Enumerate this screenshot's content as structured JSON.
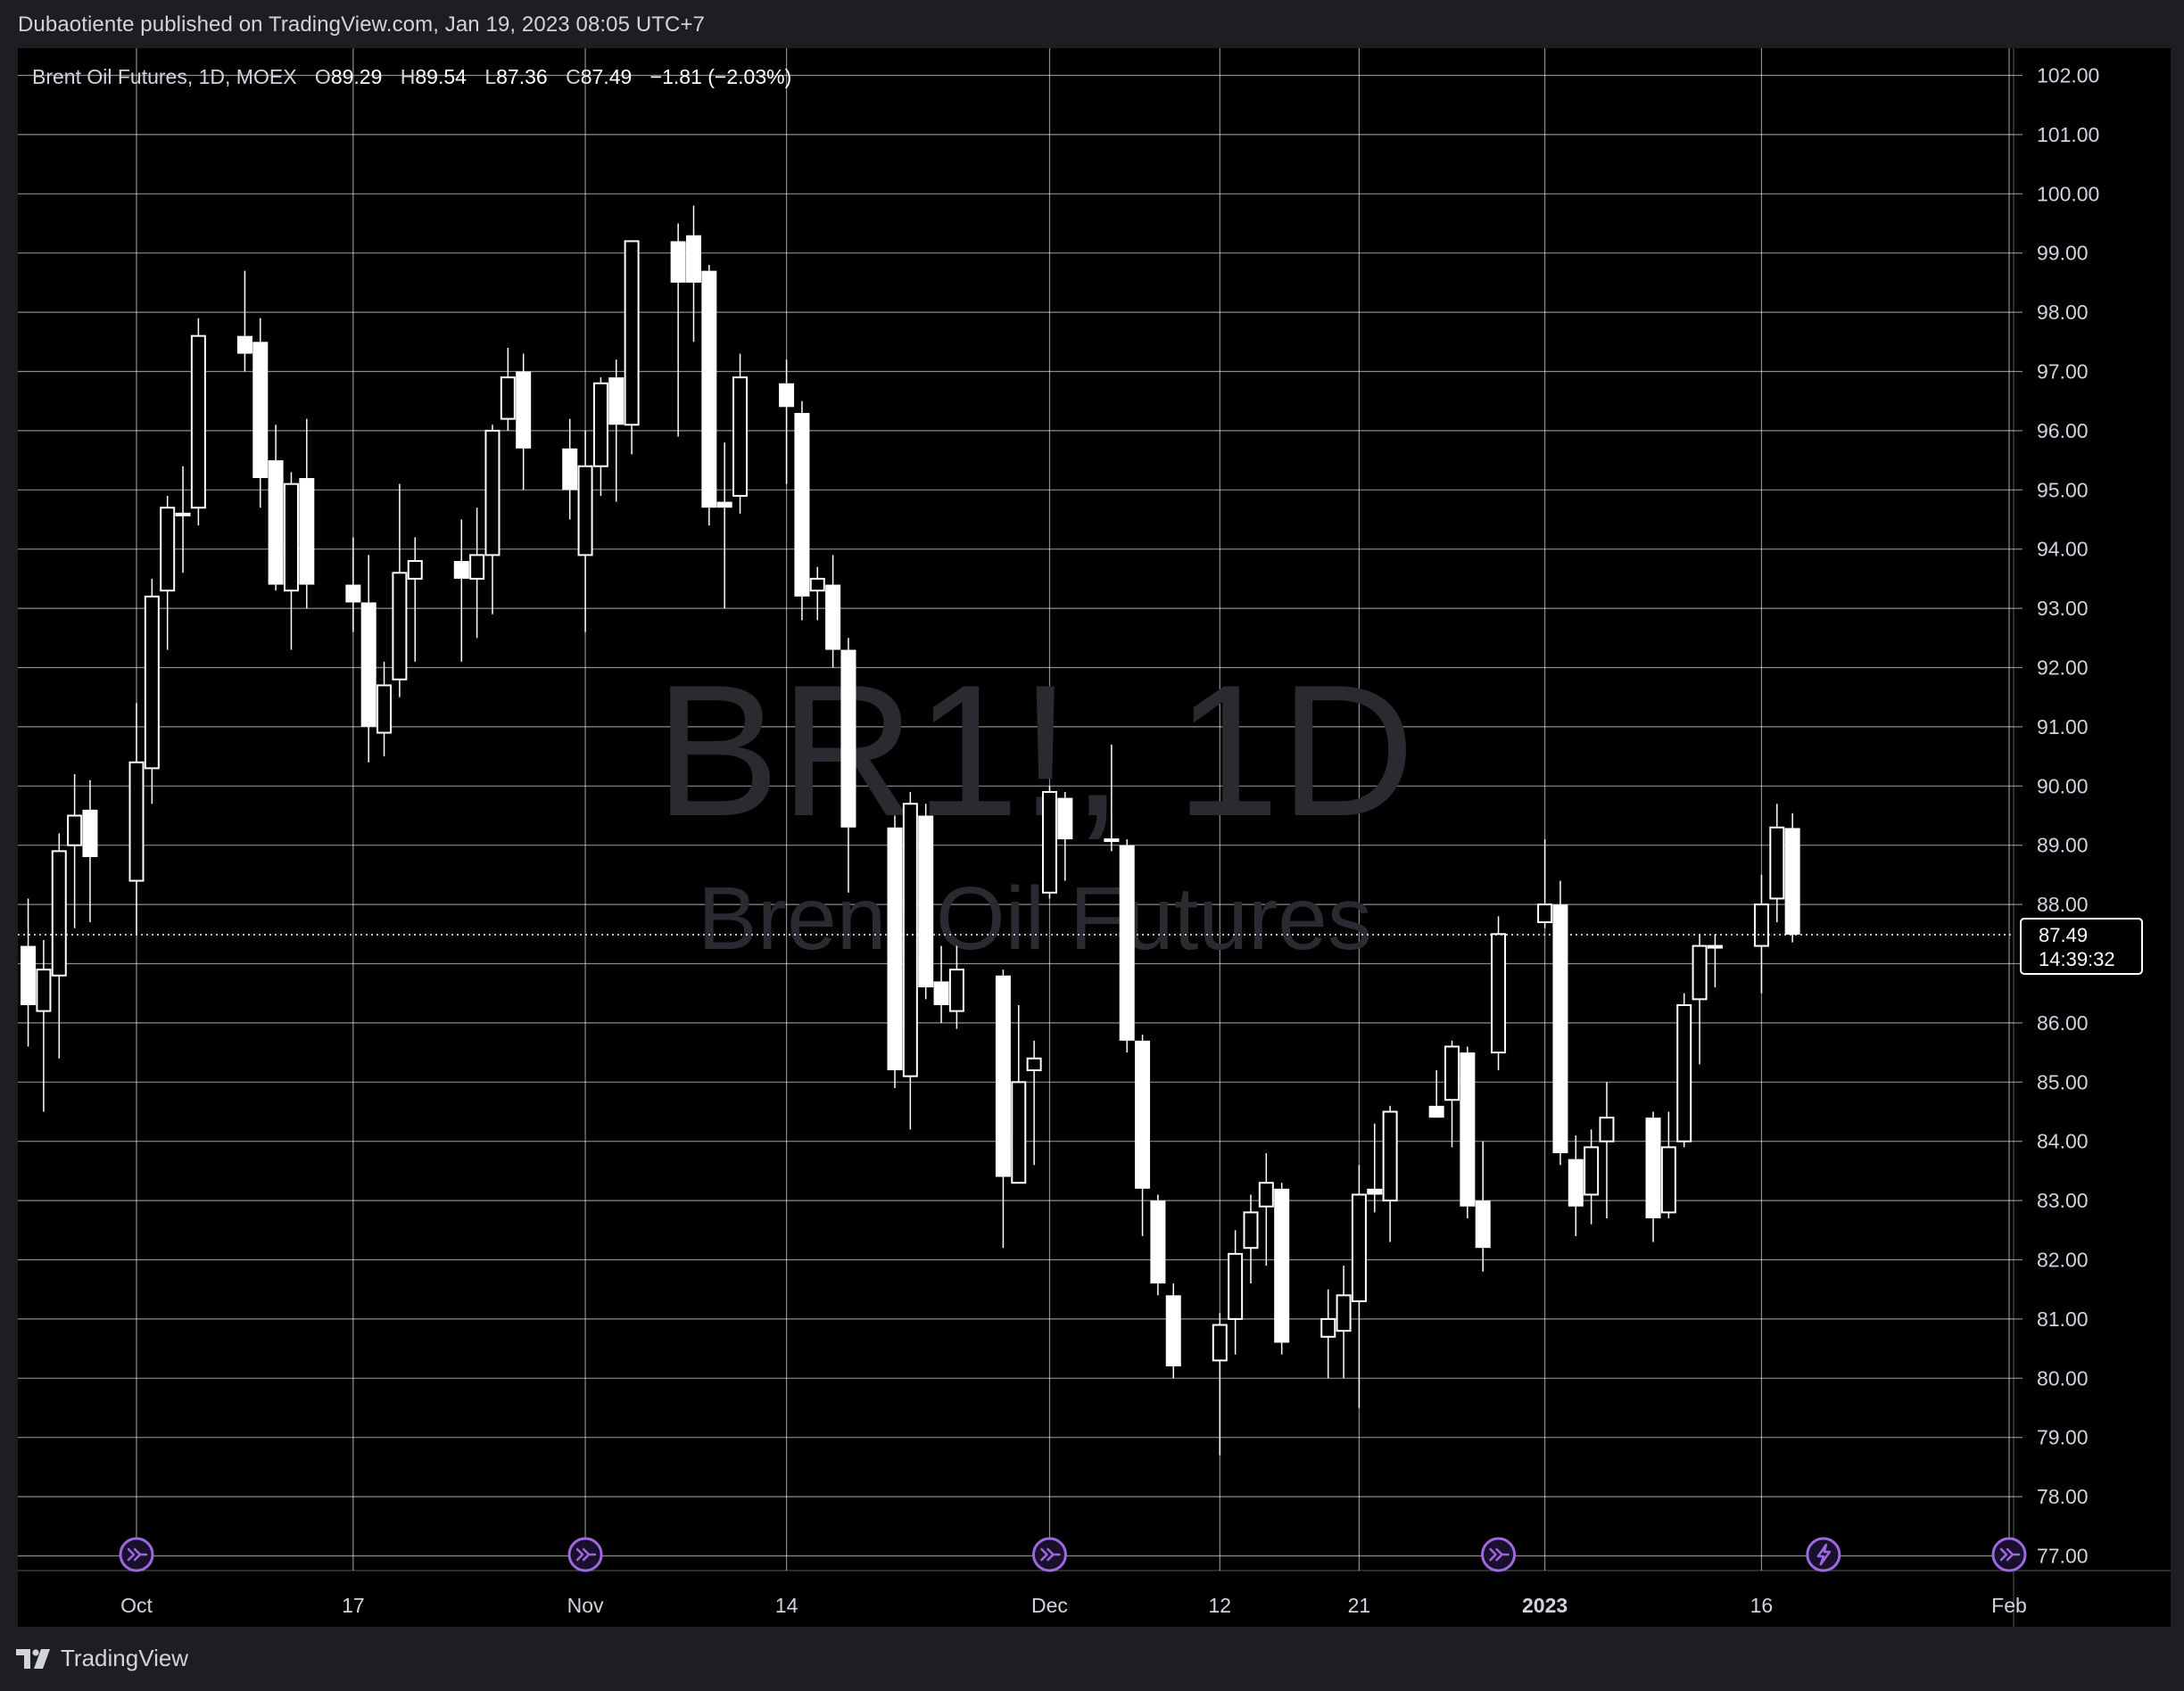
{
  "header": {
    "published_line": "Dubaotiente published on TradingView.com, Jan 19, 2023 08:05 UTC+7"
  },
  "legend": {
    "symbol": "Brent Oil Futures, 1D, MOEX",
    "o_label": "O",
    "o_value": "89.29",
    "h_label": "H",
    "h_value": "89.54",
    "l_label": "L",
    "l_value": "87.36",
    "c_label": "C",
    "c_value": "87.49",
    "change": "−1.81 (−2.03%)"
  },
  "watermark": {
    "line1": "BR1!, 1D",
    "line2": "Brent Oil Futures"
  },
  "price_tag": {
    "price": "87.49",
    "countdown": "14:39:32"
  },
  "footer": {
    "brand": "TradingView"
  },
  "colors": {
    "background": "#000000",
    "page": "#1e1e22",
    "grid": "#ffffff",
    "candle": "#ffffff",
    "event_icon": "#9c6ade",
    "text": "#d1d4dc",
    "watermark": "#2a2a31"
  },
  "icons": [
    "tradingview-logo-icon",
    "dividend-arrow-icon",
    "lightning-icon"
  ],
  "chart_data": {
    "type": "candlestick",
    "ylim": [
      76.5,
      102.5
    ],
    "y_ticks": [
      "77.00",
      "78.00",
      "79.00",
      "80.00",
      "81.00",
      "82.00",
      "83.00",
      "84.00",
      "85.00",
      "86.00",
      "87.00",
      "88.00",
      "89.00",
      "90.00",
      "91.00",
      "92.00",
      "93.00",
      "94.00",
      "95.00",
      "96.00",
      "97.00",
      "98.00",
      "99.00",
      "100.00",
      "101.00",
      "102.00"
    ],
    "x_labels": [
      {
        "text": "Oct",
        "date": "2022-10-03",
        "bold": false
      },
      {
        "text": "17",
        "date": "2022-10-17",
        "bold": false
      },
      {
        "text": "Nov",
        "date": "2022-11-01",
        "bold": false
      },
      {
        "text": "14",
        "date": "2022-11-14",
        "bold": false
      },
      {
        "text": "Dec",
        "date": "2022-12-01",
        "bold": false
      },
      {
        "text": "12",
        "date": "2022-12-12",
        "bold": false
      },
      {
        "text": "21",
        "date": "2022-12-21",
        "bold": false
      },
      {
        "text": "2023",
        "date": "2023-01-02",
        "bold": true
      },
      {
        "text": "16",
        "date": "2023-01-16",
        "bold": false
      },
      {
        "text": "Feb",
        "date": "2023-02-01",
        "bold": false
      }
    ],
    "events": [
      {
        "date": "2022-10-03",
        "type": "dividend-arrow"
      },
      {
        "date": "2022-11-01",
        "type": "dividend-arrow"
      },
      {
        "date": "2022-12-01",
        "type": "dividend-arrow"
      },
      {
        "date": "2022-12-30",
        "type": "dividend-arrow"
      },
      {
        "date": "2023-01-20",
        "type": "lightning"
      },
      {
        "date": "2023-02-01",
        "type": "dividend-arrow"
      }
    ],
    "last_price": 87.49,
    "ohlc": [
      {
        "date": "2022-09-26",
        "o": 87.3,
        "h": 88.1,
        "l": 85.6,
        "c": 86.3
      },
      {
        "date": "2022-09-27",
        "o": 86.2,
        "h": 87.4,
        "l": 84.5,
        "c": 86.9
      },
      {
        "date": "2022-09-28",
        "o": 86.8,
        "h": 89.2,
        "l": 85.4,
        "c": 88.9
      },
      {
        "date": "2022-09-29",
        "o": 89.0,
        "h": 90.2,
        "l": 87.6,
        "c": 89.5
      },
      {
        "date": "2022-09-30",
        "o": 89.6,
        "h": 90.1,
        "l": 87.7,
        "c": 88.8
      },
      {
        "date": "2022-10-03",
        "o": 88.4,
        "h": 91.4,
        "l": 87.5,
        "c": 90.4
      },
      {
        "date": "2022-10-04",
        "o": 90.3,
        "h": 93.5,
        "l": 89.7,
        "c": 93.2
      },
      {
        "date": "2022-10-05",
        "o": 93.3,
        "h": 94.9,
        "l": 92.3,
        "c": 94.7
      },
      {
        "date": "2022-10-06",
        "o": 94.6,
        "h": 95.4,
        "l": 93.6,
        "c": 94.6
      },
      {
        "date": "2022-10-07",
        "o": 94.7,
        "h": 97.9,
        "l": 94.4,
        "c": 97.6
      },
      {
        "date": "2022-10-10",
        "o": 97.6,
        "h": 98.7,
        "l": 97.0,
        "c": 97.3
      },
      {
        "date": "2022-10-11",
        "o": 97.5,
        "h": 97.9,
        "l": 94.7,
        "c": 95.2
      },
      {
        "date": "2022-10-12",
        "o": 95.5,
        "h": 96.1,
        "l": 93.3,
        "c": 93.4
      },
      {
        "date": "2022-10-13",
        "o": 93.3,
        "h": 95.3,
        "l": 92.3,
        "c": 95.1
      },
      {
        "date": "2022-10-14",
        "o": 95.2,
        "h": 96.2,
        "l": 93.0,
        "c": 93.4
      },
      {
        "date": "2022-10-17",
        "o": 93.4,
        "h": 94.2,
        "l": 92.6,
        "c": 93.1
      },
      {
        "date": "2022-10-18",
        "o": 93.1,
        "h": 93.9,
        "l": 90.4,
        "c": 91.0
      },
      {
        "date": "2022-10-19",
        "o": 90.9,
        "h": 92.1,
        "l": 90.5,
        "c": 91.7
      },
      {
        "date": "2022-10-20",
        "o": 91.8,
        "h": 95.1,
        "l": 91.5,
        "c": 93.6
      },
      {
        "date": "2022-10-21",
        "o": 93.5,
        "h": 94.2,
        "l": 92.1,
        "c": 93.8
      },
      {
        "date": "2022-10-24",
        "o": 93.8,
        "h": 94.5,
        "l": 92.1,
        "c": 93.5
      },
      {
        "date": "2022-10-25",
        "o": 93.5,
        "h": 94.7,
        "l": 92.5,
        "c": 93.9
      },
      {
        "date": "2022-10-26",
        "o": 93.9,
        "h": 96.1,
        "l": 92.9,
        "c": 96.0
      },
      {
        "date": "2022-10-27",
        "o": 96.2,
        "h": 97.4,
        "l": 96.0,
        "c": 96.9
      },
      {
        "date": "2022-10-28",
        "o": 97.0,
        "h": 97.3,
        "l": 95.0,
        "c": 95.7
      },
      {
        "date": "2022-10-31",
        "o": 95.7,
        "h": 96.2,
        "l": 94.5,
        "c": 95.0
      },
      {
        "date": "2022-11-01",
        "o": 93.9,
        "h": 96.0,
        "l": 92.6,
        "c": 95.4
      },
      {
        "date": "2022-11-02",
        "o": 95.4,
        "h": 96.9,
        "l": 94.9,
        "c": 96.8
      },
      {
        "date": "2022-11-03",
        "o": 96.9,
        "h": 97.2,
        "l": 94.8,
        "c": 96.1
      },
      {
        "date": "2022-11-04",
        "o": 96.1,
        "h": 99.1,
        "l": 95.6,
        "c": 99.2
      },
      {
        "date": "2022-11-07",
        "o": 99.2,
        "h": 99.5,
        "l": 95.9,
        "c": 98.5
      },
      {
        "date": "2022-11-08",
        "o": 99.3,
        "h": 99.8,
        "l": 97.5,
        "c": 98.5
      },
      {
        "date": "2022-11-09",
        "o": 98.7,
        "h": 98.8,
        "l": 94.4,
        "c": 94.7
      },
      {
        "date": "2022-11-10",
        "o": 94.8,
        "h": 95.8,
        "l": 93.0,
        "c": 94.7
      },
      {
        "date": "2022-11-11",
        "o": 94.9,
        "h": 97.3,
        "l": 94.6,
        "c": 96.9
      },
      {
        "date": "2022-11-14",
        "o": 96.8,
        "h": 97.2,
        "l": 95.1,
        "c": 96.4
      },
      {
        "date": "2022-11-15",
        "o": 96.3,
        "h": 96.5,
        "l": 92.8,
        "c": 93.2
      },
      {
        "date": "2022-11-16",
        "o": 93.3,
        "h": 93.7,
        "l": 92.8,
        "c": 93.5
      },
      {
        "date": "2022-11-17",
        "o": 93.4,
        "h": 93.9,
        "l": 92.0,
        "c": 92.3
      },
      {
        "date": "2022-11-18",
        "o": 92.3,
        "h": 92.5,
        "l": 88.2,
        "c": 89.3
      },
      {
        "date": "2022-11-21",
        "o": 89.3,
        "h": 89.5,
        "l": 84.9,
        "c": 85.2
      },
      {
        "date": "2022-11-22",
        "o": 85.1,
        "h": 89.9,
        "l": 84.2,
        "c": 89.7
      },
      {
        "date": "2022-11-23",
        "o": 89.5,
        "h": 89.7,
        "l": 86.4,
        "c": 86.6
      },
      {
        "date": "2022-11-24",
        "o": 86.7,
        "h": 87.3,
        "l": 86.0,
        "c": 86.3
      },
      {
        "date": "2022-11-25",
        "o": 86.2,
        "h": 87.3,
        "l": 85.9,
        "c": 86.9
      },
      {
        "date": "2022-11-28",
        "o": 86.8,
        "h": 86.9,
        "l": 82.2,
        "c": 83.4
      },
      {
        "date": "2022-11-29",
        "o": 83.3,
        "h": 86.3,
        "l": 83.3,
        "c": 85.0
      },
      {
        "date": "2022-11-30",
        "o": 85.2,
        "h": 85.7,
        "l": 83.6,
        "c": 85.4
      },
      {
        "date": "2022-12-01",
        "o": 88.2,
        "h": 90.0,
        "l": 88.1,
        "c": 89.9
      },
      {
        "date": "2022-12-02",
        "o": 89.8,
        "h": 89.9,
        "l": 88.4,
        "c": 89.1
      },
      {
        "date": "2022-12-05",
        "o": 89.1,
        "h": 90.7,
        "l": 88.9,
        "c": 89.1
      },
      {
        "date": "2022-12-06",
        "o": 89.0,
        "h": 89.1,
        "l": 85.5,
        "c": 85.7
      },
      {
        "date": "2022-12-07",
        "o": 85.7,
        "h": 85.8,
        "l": 82.4,
        "c": 83.2
      },
      {
        "date": "2022-12-08",
        "o": 83.0,
        "h": 83.1,
        "l": 81.4,
        "c": 81.6
      },
      {
        "date": "2022-12-09",
        "o": 81.4,
        "h": 81.6,
        "l": 80.0,
        "c": 80.2
      },
      {
        "date": "2022-12-12",
        "o": 80.3,
        "h": 81.1,
        "l": 78.7,
        "c": 80.9
      },
      {
        "date": "2022-12-13",
        "o": 81.0,
        "h": 82.5,
        "l": 80.4,
        "c": 82.1
      },
      {
        "date": "2022-12-14",
        "o": 82.2,
        "h": 83.1,
        "l": 81.6,
        "c": 82.8
      },
      {
        "date": "2022-12-15",
        "o": 82.9,
        "h": 83.8,
        "l": 81.9,
        "c": 83.3
      },
      {
        "date": "2022-12-16",
        "o": 83.2,
        "h": 83.3,
        "l": 80.4,
        "c": 80.6
      },
      {
        "date": "2022-12-19",
        "o": 80.7,
        "h": 81.5,
        "l": 80.0,
        "c": 81.0
      },
      {
        "date": "2022-12-20",
        "o": 80.8,
        "h": 81.9,
        "l": 80.0,
        "c": 81.4
      },
      {
        "date": "2022-12-21",
        "o": 81.3,
        "h": 83.6,
        "l": 79.5,
        "c": 83.1
      },
      {
        "date": "2022-12-22",
        "o": 83.2,
        "h": 84.3,
        "l": 82.8,
        "c": 83.1
      },
      {
        "date": "2022-12-23",
        "o": 83.0,
        "h": 84.6,
        "l": 82.3,
        "c": 84.5
      },
      {
        "date": "2022-12-26",
        "o": 84.6,
        "h": 85.2,
        "l": 84.5,
        "c": 84.4
      },
      {
        "date": "2022-12-27",
        "o": 84.7,
        "h": 85.7,
        "l": 83.9,
        "c": 85.6
      },
      {
        "date": "2022-12-28",
        "o": 85.5,
        "h": 85.6,
        "l": 82.7,
        "c": 82.9
      },
      {
        "date": "2022-12-29",
        "o": 83.0,
        "h": 84.0,
        "l": 81.8,
        "c": 82.2
      },
      {
        "date": "2022-12-30",
        "o": 85.5,
        "h": 87.8,
        "l": 85.2,
        "c": 87.5
      },
      {
        "date": "2023-01-02",
        "o": 87.7,
        "h": 89.1,
        "l": 87.6,
        "c": 88.0
      },
      {
        "date": "2023-01-03",
        "o": 88.0,
        "h": 88.4,
        "l": 83.6,
        "c": 83.8
      },
      {
        "date": "2023-01-04",
        "o": 83.7,
        "h": 84.1,
        "l": 82.4,
        "c": 82.9
      },
      {
        "date": "2023-01-05",
        "o": 83.1,
        "h": 84.2,
        "l": 82.6,
        "c": 83.9
      },
      {
        "date": "2023-01-06",
        "o": 84.0,
        "h": 85.0,
        "l": 82.7,
        "c": 84.4
      },
      {
        "date": "2023-01-09",
        "o": 84.4,
        "h": 84.5,
        "l": 82.3,
        "c": 82.7
      },
      {
        "date": "2023-01-10",
        "o": 82.8,
        "h": 84.5,
        "l": 82.7,
        "c": 83.9
      },
      {
        "date": "2023-01-11",
        "o": 84.0,
        "h": 86.5,
        "l": 83.9,
        "c": 86.3
      },
      {
        "date": "2023-01-12",
        "o": 86.4,
        "h": 87.5,
        "l": 85.3,
        "c": 87.3
      },
      {
        "date": "2023-01-13",
        "o": 87.3,
        "h": 87.5,
        "l": 86.6,
        "c": 87.3
      },
      {
        "date": "2023-01-16",
        "o": 87.3,
        "h": 88.5,
        "l": 86.5,
        "c": 88.0
      },
      {
        "date": "2023-01-17",
        "o": 88.1,
        "h": 89.7,
        "l": 87.7,
        "c": 89.3
      },
      {
        "date": "2023-01-18",
        "o": 89.29,
        "h": 89.54,
        "l": 87.36,
        "c": 87.49
      }
    ]
  }
}
